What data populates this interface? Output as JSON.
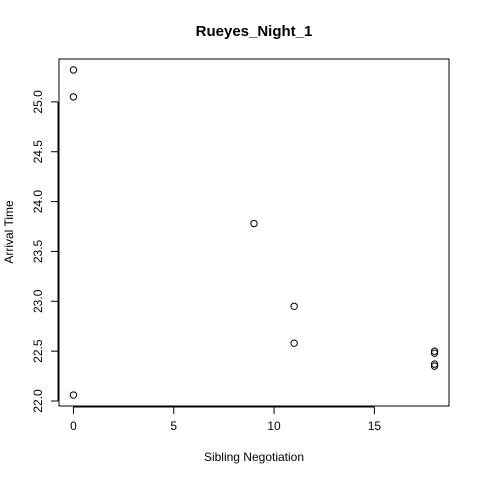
{
  "chart_data": {
    "type": "scatter",
    "title": "Rueyes_Night_1",
    "xlabel": "Sibling Negotiation",
    "ylabel": "Arrival Time",
    "xlim": [
      -0.72,
      18.72
    ],
    "ylim": [
      21.95,
      25.43
    ],
    "xticks": [
      0,
      5,
      10,
      15
    ],
    "yticks": [
      22.0,
      22.5,
      23.0,
      23.5,
      24.0,
      24.5,
      25.0
    ],
    "ytick_labels": [
      "22.0",
      "22.5",
      "23.0",
      "23.5",
      "24.0",
      "24.5",
      "25.0"
    ],
    "grid": false,
    "point_style": "open-circle",
    "x": [
      0,
      0,
      0,
      9,
      11,
      11,
      18,
      18,
      18,
      18
    ],
    "y": [
      25.32,
      25.05,
      22.06,
      23.78,
      22.95,
      22.58,
      22.5,
      22.48,
      22.37,
      22.35
    ]
  }
}
